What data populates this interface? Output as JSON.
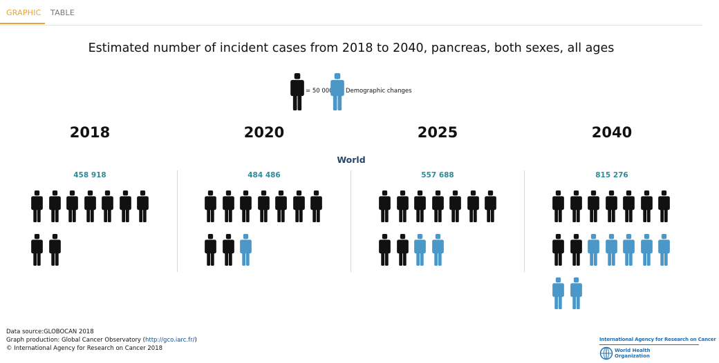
{
  "tabs": {
    "graphic": "GRAPHIC",
    "table": "TABLE"
  },
  "chart_data": {
    "type": "pictograph",
    "title": "Estimated number of incident cases from 2018 to 2040, pancreas, both sexes, all ages",
    "region": "World",
    "legend": {
      "unit_label": "= 50 000",
      "demographic_label": "Demographic changes",
      "colors": {
        "base": "#111111",
        "demographic": "#4a97c8"
      }
    },
    "categories": [
      "2018",
      "2020",
      "2025",
      "2040"
    ],
    "values": [
      458918,
      484486,
      557688,
      815276
    ],
    "value_labels": [
      "458 918",
      "484 486",
      "557 688",
      "815 276"
    ],
    "icons": [
      {
        "base": 9,
        "demographic": 0
      },
      {
        "base": 9,
        "demographic": 1
      },
      {
        "base": 9,
        "demographic": 2
      },
      {
        "base": 9,
        "demographic": 7
      }
    ]
  },
  "footer": {
    "data_source": "Data source:GLOBOCAN 2018",
    "production_prefix": "Graph production: Global Cancer Observatory (",
    "production_link": "http://gco.iarc.fr/",
    "production_suffix": ")",
    "copyright": "© International Agency for Research on Cancer 2018"
  },
  "logo": {
    "iarc": "International Agency for Research on Cancer",
    "who_line1": "World Health",
    "who_line2": "Organization"
  }
}
